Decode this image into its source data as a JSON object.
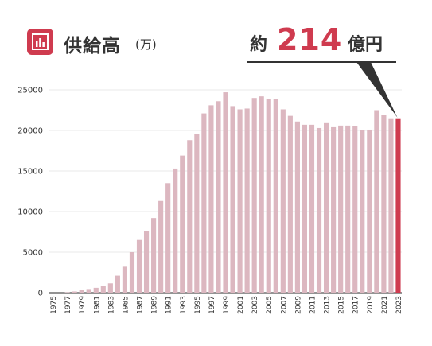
{
  "header": {
    "title": "供給高",
    "unit": "(万)",
    "icon": "bar-chart-icon",
    "accent": "#cf3b4f"
  },
  "callout": {
    "prefix": "約",
    "value": "214",
    "suffix": "億円"
  },
  "chart_data": {
    "type": "bar",
    "title": "供給高",
    "xlabel": "",
    "ylabel": "",
    "ylim": [
      0,
      25000
    ],
    "yticks": [
      "0",
      "5000",
      "10000",
      "15000",
      "20000",
      "25000"
    ],
    "grid": true,
    "categories": [
      "1975",
      "1976",
      "1977",
      "1978",
      "1979",
      "1980",
      "1981",
      "1982",
      "1983",
      "1984",
      "1985",
      "1986",
      "1987",
      "1988",
      "1989",
      "1990",
      "1991",
      "1992",
      "1993",
      "1994",
      "1995",
      "1996",
      "1997",
      "1998",
      "1999",
      "2000",
      "2001",
      "2002",
      "2003",
      "2004",
      "2005",
      "2006",
      "2007",
      "2008",
      "2009",
      "2010",
      "2011",
      "2012",
      "2013",
      "2014",
      "2015",
      "2016",
      "2017",
      "2018",
      "2019",
      "2020",
      "2021",
      "2022",
      "2023"
    ],
    "xtick_labels": [
      "1975",
      "1977",
      "1979",
      "1981",
      "1983",
      "1985",
      "1987",
      "1989",
      "1991",
      "1993",
      "1995",
      "1997",
      "1999",
      "2001",
      "2003",
      "2005",
      "2007",
      "2009",
      "2011",
      "2013",
      "2015",
      "2017",
      "2019",
      "2021",
      "2023"
    ],
    "values": [
      0,
      0,
      50,
      150,
      300,
      450,
      600,
      850,
      1150,
      2100,
      3200,
      5000,
      6500,
      7600,
      9200,
      11300,
      13500,
      15300,
      16900,
      18800,
      19600,
      22100,
      23100,
      23600,
      24700,
      23000,
      22600,
      22700,
      24000,
      24200,
      23900,
      23900,
      22600,
      21800,
      21100,
      20700,
      20700,
      20300,
      20900,
      20400,
      20600,
      20600,
      20500,
      20000,
      20100,
      22500,
      21900,
      21500,
      21500
    ],
    "bar_color": "#dcb7c0",
    "highlight_color": "#cf3b4f",
    "highlight_category": "2023"
  }
}
